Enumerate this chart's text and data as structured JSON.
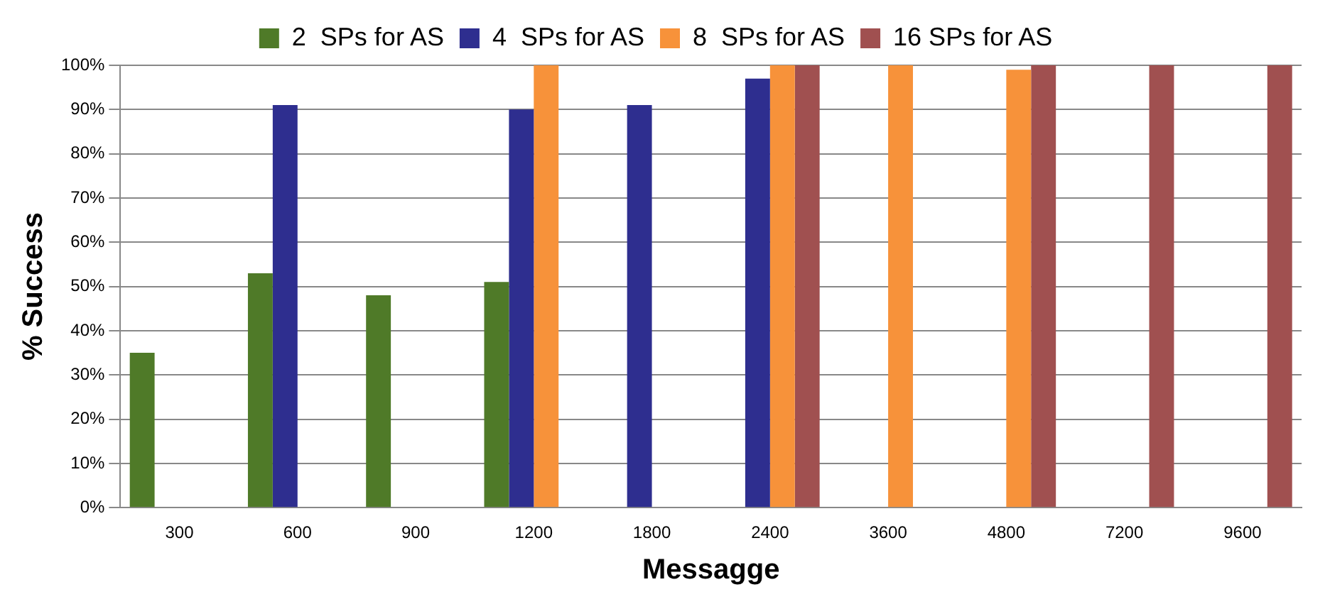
{
  "chart_data": {
    "type": "bar",
    "xlabel": "Messagge",
    "ylabel": "% Success",
    "categories": [
      "300",
      "600",
      "900",
      "1200",
      "1800",
      "2400",
      "3600",
      "4800",
      "7200",
      "9600"
    ],
    "series": [
      {
        "name": "2  SPs for AS",
        "color": "#4f7a28",
        "values": [
          35,
          53,
          48,
          51,
          null,
          null,
          null,
          null,
          null,
          null
        ]
      },
      {
        "name": "4  SPs for AS",
        "color": "#2e2e8f",
        "values": [
          null,
          91,
          null,
          90,
          91,
          97,
          null,
          null,
          null,
          null
        ]
      },
      {
        "name": "8  SPs for AS",
        "color": "#f7923a",
        "values": [
          null,
          null,
          null,
          100,
          null,
          100,
          100,
          99,
          null,
          null
        ]
      },
      {
        "name": "16 SPs for AS",
        "color": "#a05050",
        "values": [
          null,
          null,
          null,
          null,
          null,
          100,
          null,
          100,
          100,
          100
        ]
      }
    ],
    "ylim": [
      0,
      100
    ],
    "yticks": [
      {
        "value": 0,
        "label": "0%"
      },
      {
        "value": 10,
        "label": "10%"
      },
      {
        "value": 20,
        "label": "20%"
      },
      {
        "value": 30,
        "label": "30%"
      },
      {
        "value": 40,
        "label": "40%"
      },
      {
        "value": 50,
        "label": "50%"
      },
      {
        "value": 60,
        "label": "60%"
      },
      {
        "value": 70,
        "label": "70%"
      },
      {
        "value": 80,
        "label": "80%"
      },
      {
        "value": 90,
        "label": "90%"
      },
      {
        "value": 100,
        "label": "100%"
      }
    ],
    "grid": "y",
    "legend": "top"
  }
}
